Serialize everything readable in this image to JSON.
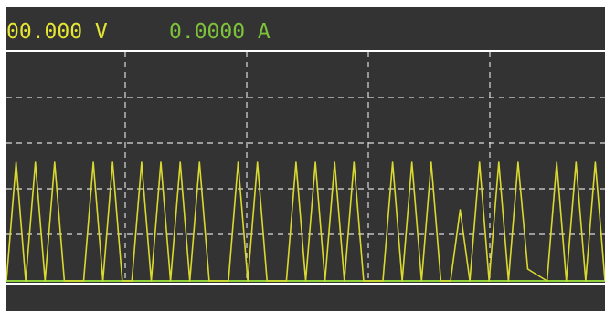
{
  "readout": {
    "voltage": "00.000 V",
    "current": "0.0000 A"
  },
  "colors": {
    "background": "#333333",
    "voltage": "#e5e533",
    "current": "#7dc23a",
    "trace_voltage": "#d9d930",
    "trace_current": "#8ed13c",
    "frame": "#ffffff",
    "grid": "#dcdcdc"
  },
  "scope": {
    "grid": true,
    "voltage_trace": [
      0,
      1,
      0,
      1,
      0,
      1,
      0,
      0,
      0,
      1,
      0,
      1,
      0,
      0,
      1,
      0,
      1,
      0,
      1,
      0,
      1,
      0,
      0,
      0,
      1,
      0,
      1,
      0,
      0,
      0,
      1,
      0,
      1,
      0,
      1,
      0,
      1,
      0,
      0,
      0,
      1,
      0,
      1,
      0,
      1,
      0,
      0,
      0.6,
      0,
      1,
      0,
      1,
      0,
      1,
      0.1,
      0.05,
      0,
      1,
      0,
      1,
      0,
      1,
      0
    ]
  }
}
